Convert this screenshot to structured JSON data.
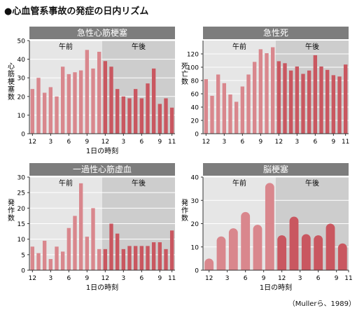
{
  "title": "●心血管系事故の発症の日内リズム",
  "credit": "（Mullerら、1989）",
  "colors": {
    "header_bg": "#7d7d7d",
    "header_text": "#ffffff",
    "am_bg": "#e6e6e6",
    "pm_bg": "#cdcdcd",
    "bar_am": "#d9878d",
    "bar_pm": "#c95760",
    "grid": "#ffffff",
    "axis": "#333333"
  },
  "chart_data": [
    {
      "type": "bar",
      "title": "急性心筋梗塞",
      "ylabel": "心筋梗塞数",
      "xlabel": "1日の時刻",
      "period_labels": [
        "午前",
        "午後"
      ],
      "ylim": [
        0,
        50
      ],
      "yticks": [
        0,
        10,
        20,
        30,
        40,
        50
      ],
      "xtick_labels": [
        "12",
        "3",
        "6",
        "9",
        "12",
        "3",
        "6",
        "9",
        "11"
      ],
      "bar_style": "thin",
      "values": [
        24,
        30,
        22,
        25,
        20,
        36,
        32,
        33,
        34,
        45,
        35,
        44,
        39,
        36,
        24,
        20,
        19,
        24,
        19,
        27,
        35,
        16,
        19,
        14
      ]
    },
    {
      "type": "bar",
      "title": "急性死",
      "ylabel": "死亡数",
      "xlabel": "",
      "period_labels": [
        "午前",
        "午後"
      ],
      "ylim": [
        0,
        140
      ],
      "yticks": [
        0,
        20,
        40,
        60,
        80,
        100,
        120
      ],
      "xtick_labels": [
        "12",
        "3",
        "6",
        "9",
        "12",
        "3",
        "6",
        "9",
        "11"
      ],
      "bar_style": "thin",
      "values": [
        82,
        57,
        89,
        76,
        59,
        48,
        71,
        89,
        108,
        127,
        121,
        130,
        109,
        106,
        95,
        101,
        90,
        95,
        118,
        101,
        96,
        88,
        86,
        104
      ]
    },
    {
      "type": "bar",
      "title": "一過性心筋虚血",
      "ylabel": "発作数",
      "xlabel": "1日の時刻",
      "period_labels": [
        "午前",
        "午後"
      ],
      "ylim": [
        0,
        30
      ],
      "yticks": [
        0,
        5,
        10,
        15,
        20,
        25,
        30
      ],
      "xtick_labels": [
        "12",
        "3",
        "6",
        "9",
        "12",
        "3",
        "6",
        "9",
        "11"
      ],
      "bar_style": "thin",
      "values": [
        7.6,
        5.5,
        9.5,
        3.6,
        7.6,
        6,
        13.6,
        17.5,
        28,
        10.8,
        20,
        6.8,
        6.8,
        15,
        11.8,
        6.8,
        7.8,
        7.8,
        7.8,
        7.8,
        9,
        9,
        6.8,
        12.8
      ]
    },
    {
      "type": "bar",
      "title": "脳梗塞",
      "ylabel": "発作数",
      "xlabel": "1日の時刻",
      "period_labels": [
        "午前",
        "午後"
      ],
      "ylim": [
        0,
        40
      ],
      "yticks": [
        0,
        10,
        20,
        30,
        40
      ],
      "xtick_labels": [
        "12",
        "3",
        "6",
        "9",
        "12",
        "3",
        "6",
        "9",
        "11"
      ],
      "bar_style": "wide",
      "values": [
        5,
        14.5,
        18,
        25,
        19.5,
        37.5,
        15,
        23,
        15.5,
        15,
        20,
        11.5
      ]
    }
  ]
}
